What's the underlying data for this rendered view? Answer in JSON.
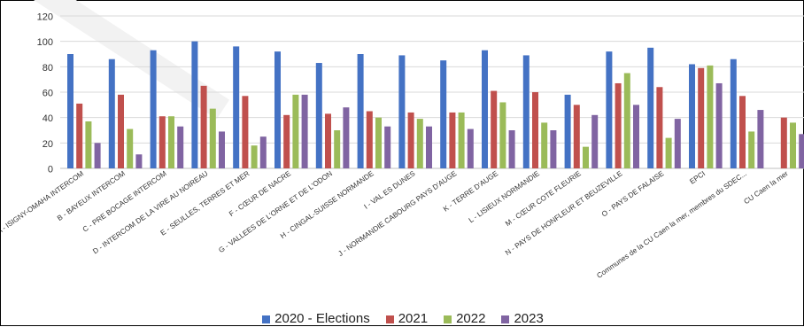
{
  "chart_data": {
    "type": "bar",
    "ylim": [
      0,
      120
    ],
    "yticks": [
      0,
      20,
      40,
      60,
      80,
      100,
      120
    ],
    "grid": true,
    "legend_position": "bottom",
    "categories": [
      "A - ISIGNY-OMAHA INTERCOM",
      "B - BAYEUX INTERCOM",
      "C - PRE BOCAGE INTERCOM",
      "D - INTERCOM DE LA VIRE AU NOIREAU",
      "E - SEULLES, TERRES ET MER",
      "F - CŒUR DE NACRE",
      "G - VALLEES DE L'ORNE ET DE L'ODON",
      "H - CINGAL-SUISSE NORMANDE",
      "I - VAL ES DUNES",
      "J - NORMANDIE CABOURG PAYS D'AUGE",
      "K - TERRE D'AUGE",
      "L - LISIEUX NORMANDIE",
      "M - CŒUR COTE FLEURIE",
      "N - PAYS DE HONFLEUR ET BEUZEVILLE",
      "O - PAYS DE FALAISE",
      "EPCI",
      "Communes de la CU Caen la mer, membres du SDEC...",
      "CU Caen la mer"
    ],
    "series": [
      {
        "name": "2020 - Elections",
        "color": "#4472C4",
        "values": [
          90,
          86,
          93,
          100,
          96,
          92,
          83,
          90,
          89,
          85,
          93,
          89,
          58,
          92,
          95,
          82,
          86,
          null
        ]
      },
      {
        "name": "2021",
        "color": "#C0504D",
        "values": [
          51,
          58,
          41,
          65,
          57,
          42,
          43,
          45,
          44,
          44,
          61,
          60,
          50,
          67,
          64,
          79,
          57,
          40
        ]
      },
      {
        "name": "2022",
        "color": "#9BBB59",
        "values": [
          37,
          31,
          41,
          47,
          18,
          58,
          30,
          40,
          39,
          44,
          52,
          36,
          17,
          75,
          24,
          81,
          29,
          36
        ]
      },
      {
        "name": "2023",
        "color": "#8064A2",
        "values": [
          20,
          11,
          33,
          29,
          25,
          58,
          48,
          33,
          33,
          31,
          30,
          30,
          42,
          50,
          39,
          67,
          46,
          27
        ]
      }
    ]
  }
}
